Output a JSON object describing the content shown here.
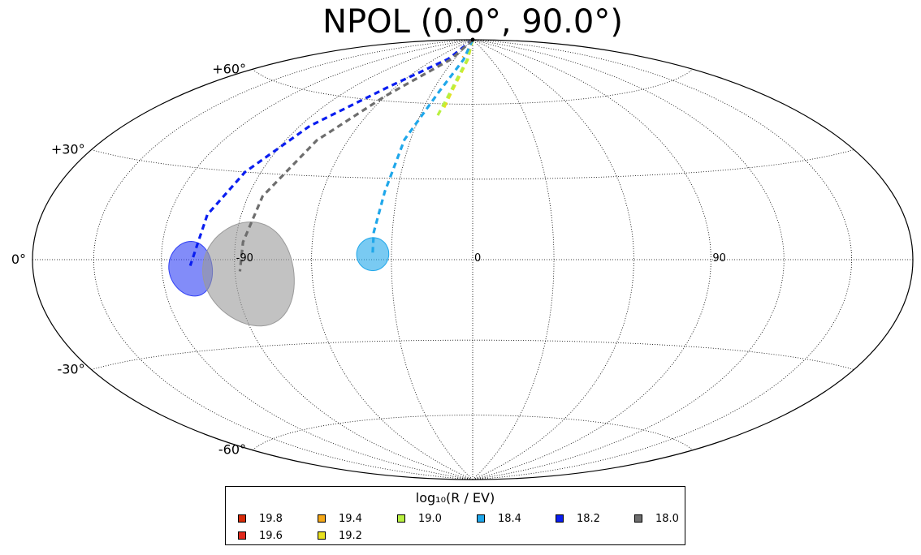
{
  "title": "NPOL (0.0°, 90.0°)",
  "legend": {
    "title": "log₁₀(R / EV)",
    "items": [
      {
        "label": "19.8",
        "color": "#d62a08"
      },
      {
        "label": "19.6",
        "color": "#e0281c"
      },
      {
        "label": "19.4",
        "color": "#f5a818"
      },
      {
        "label": "19.2",
        "color": "#e8e020"
      },
      {
        "label": "19.0",
        "color": "#b8f040"
      },
      {
        "label": "18.4",
        "color": "#1fa7ea"
      },
      {
        "label": "18.2",
        "color": "#0a1ef0"
      },
      {
        "label": "18.0",
        "color": "#6e6e6e"
      }
    ]
  },
  "chart_data": {
    "type": "scatter",
    "projection": "hammer",
    "title": "NPOL (0.0°, 90.0°)",
    "grid": true,
    "legend_placement": "bottom",
    "lon_tick_labels": [
      {
        "lon": 90,
        "label": "90"
      },
      {
        "lon": 0,
        "label": "0"
      },
      {
        "lon": -90,
        "label": "-90"
      }
    ],
    "lat_tick_labels": [
      {
        "lat": 60,
        "label": "+60°"
      },
      {
        "lat": 30,
        "label": "+30°"
      },
      {
        "lat": 0,
        "label": "0°"
      },
      {
        "lat": -30,
        "label": "-30°"
      },
      {
        "lat": -60,
        "label": "-60°"
      }
    ],
    "source": {
      "lon": 0.0,
      "lat": 90.0
    },
    "series": [
      {
        "name": "19.8",
        "color": "#d62a08",
        "track": [
          [
            0,
            90
          ],
          [
            -8,
            86
          ],
          [
            -12,
            84
          ]
        ]
      },
      {
        "name": "19.6",
        "color": "#e0281c",
        "track": [
          [
            0,
            90
          ],
          [
            -10,
            85
          ],
          [
            -15,
            82
          ]
        ]
      },
      {
        "name": "19.4",
        "color": "#f5a818",
        "track": [
          [
            0,
            90
          ],
          [
            -12,
            84
          ],
          [
            -18,
            81
          ]
        ]
      },
      {
        "name": "19.2",
        "color": "#e8e020",
        "track": [
          [
            0,
            90
          ],
          [
            -8,
            80
          ],
          [
            -13,
            72
          ],
          [
            -16,
            64
          ],
          [
            -18,
            57
          ]
        ]
      },
      {
        "name": "19.0",
        "color": "#b8f040",
        "track": [
          [
            0,
            90
          ],
          [
            -9,
            80
          ],
          [
            -14,
            72
          ],
          [
            -17,
            64
          ],
          [
            -20,
            55
          ]
        ]
      },
      {
        "name": "18.4",
        "color": "#1fa7ea",
        "track": [
          [
            0,
            90
          ],
          [
            -15,
            80
          ],
          [
            -25,
            65
          ],
          [
            -33,
            45
          ],
          [
            -35,
            25
          ],
          [
            -37,
            10
          ],
          [
            -37,
            2
          ]
        ],
        "spot": {
          "lon": -37,
          "lat": 2,
          "r": 6,
          "color": "#1fa7ea"
        }
      },
      {
        "name": "18.2",
        "color": "#0a1ef0",
        "track": [
          [
            0,
            90
          ],
          [
            -40,
            80
          ],
          [
            -65,
            66
          ],
          [
            -85,
            48
          ],
          [
            -97,
            30
          ],
          [
            -104,
            15
          ],
          [
            -108,
            -2
          ]
        ],
        "spot": {
          "lon": -108,
          "lat": -3,
          "r": 9,
          "color": "#2f3ff5"
        }
      },
      {
        "name": "18.0",
        "color": "#6e6e6e",
        "track": [
          [
            0,
            90
          ],
          [
            -35,
            80
          ],
          [
            -60,
            62
          ],
          [
            -75,
            43
          ],
          [
            -84,
            22
          ],
          [
            -87,
            6
          ],
          [
            -88,
            -4
          ]
        ],
        "spot": {
          "lon": -85,
          "lat": -5,
          "r": 18,
          "color": "#9a9a9a"
        }
      }
    ]
  }
}
